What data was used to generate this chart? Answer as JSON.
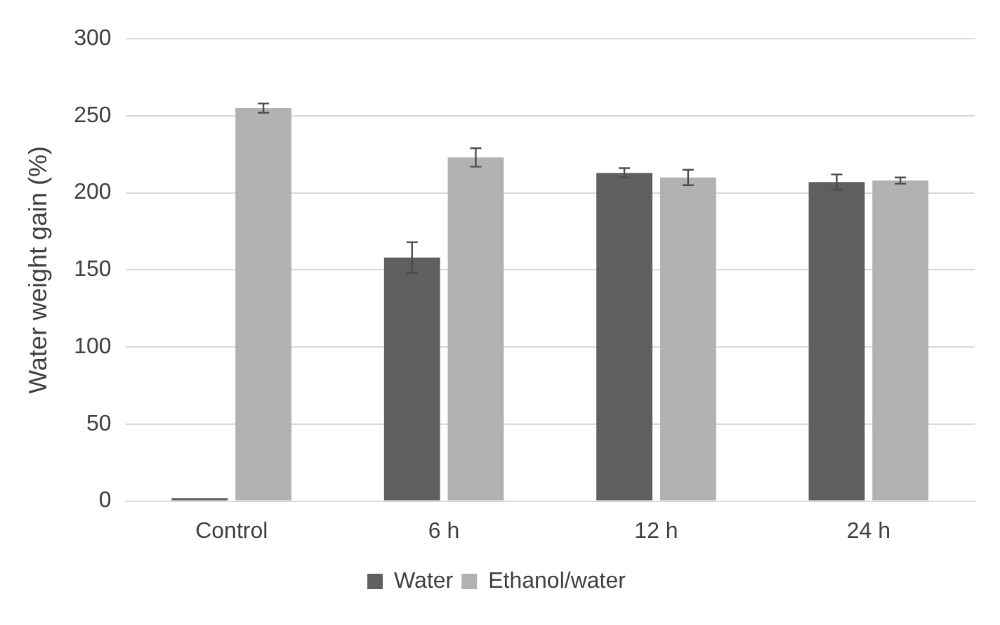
{
  "chart_data": {
    "type": "bar",
    "ylabel": "Water weight gain (%)",
    "categories": [
      "Control",
      "6 h",
      "12 h",
      "24 h"
    ],
    "series": [
      {
        "name": "Water",
        "color": "#5f5f5f",
        "values": [
          2,
          158,
          213,
          207
        ],
        "errors": [
          null,
          10,
          3,
          5
        ]
      },
      {
        "name": "Ethanol/water",
        "color": "#b2b2b2",
        "values": [
          255,
          223,
          210,
          208
        ],
        "errors": [
          3,
          6,
          5,
          2
        ]
      }
    ],
    "ylim": [
      0,
      300
    ],
    "yticks": [
      0,
      50,
      100,
      150,
      200,
      250,
      300
    ],
    "grid": "y",
    "legend": "bottom"
  }
}
